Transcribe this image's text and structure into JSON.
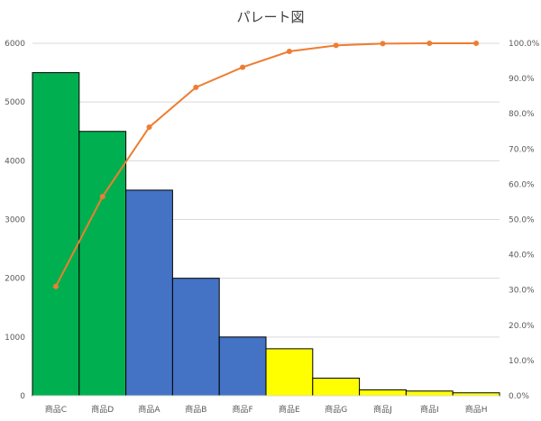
{
  "chart_data": {
    "type": "bar",
    "title": "パレート図",
    "categories": [
      "商品C",
      "商品D",
      "商品A",
      "商品B",
      "商品F",
      "商品E",
      "商品G",
      "商品J",
      "商品I",
      "商品H"
    ],
    "series": [
      {
        "kind": "bar",
        "axis": "left",
        "values": [
          5500,
          4500,
          3500,
          2000,
          1000,
          800,
          300,
          100,
          80,
          50
        ],
        "colors": [
          "#00b050",
          "#00b050",
          "#4472c4",
          "#4472c4",
          "#4472c4",
          "#ffff00",
          "#ffff00",
          "#ffff00",
          "#ffff00",
          "#ffff00"
        ]
      },
      {
        "kind": "line",
        "axis": "right",
        "color": "#ed7d31",
        "values": [
          31.0,
          56.5,
          76.2,
          87.5,
          93.2,
          97.7,
          99.4,
          99.9,
          100.0,
          100.0
        ]
      }
    ],
    "y_left": {
      "min": 0,
      "max": 6000,
      "ticks": [
        "0",
        "1000",
        "2000",
        "3000",
        "4000",
        "5000",
        "6000"
      ]
    },
    "y_right": {
      "min": 0,
      "max": 100,
      "ticks": [
        "0.0%",
        "10.0%",
        "20.0%",
        "30.0%",
        "40.0%",
        "50.0%",
        "60.0%",
        "70.0%",
        "80.0%",
        "90.0%",
        "100.0%"
      ]
    },
    "grid": true,
    "legend": "none"
  }
}
